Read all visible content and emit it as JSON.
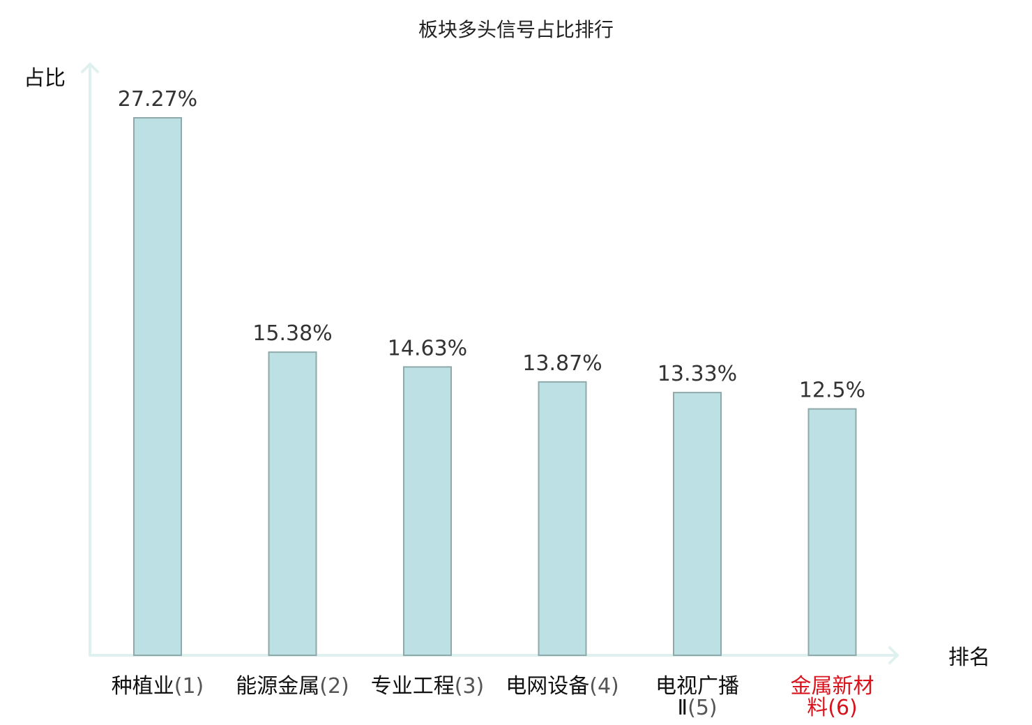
{
  "chart_data": {
    "type": "bar",
    "title": "板块多头信号占比排行",
    "ylabel": "占比",
    "xlabel": "排名",
    "ylim": [
      0,
      30
    ],
    "grid": false,
    "categories": [
      {
        "name": "种植业",
        "rank": "(1)",
        "lines": [
          "种植业(1)"
        ],
        "highlight": false
      },
      {
        "name": "能源金属",
        "rank": "(2)",
        "lines": [
          "能源金属(2)"
        ],
        "highlight": false
      },
      {
        "name": "专业工程",
        "rank": "(3)",
        "lines": [
          "专业工程(3)"
        ],
        "highlight": false
      },
      {
        "name": "电网设备",
        "rank": "(4)",
        "lines": [
          "电网设备(4)"
        ],
        "highlight": false
      },
      {
        "name": "电视广播Ⅱ",
        "rank": "(5)",
        "lines": [
          "电视广播",
          "Ⅱ(5)"
        ],
        "highlight": false
      },
      {
        "name": "金属新材料",
        "rank": "(6)",
        "lines": [
          "金属新材",
          "料(6)"
        ],
        "highlight": true
      }
    ],
    "values": [
      27.27,
      15.38,
      14.63,
      13.87,
      13.33,
      12.5
    ],
    "value_labels": [
      "27.27%",
      "15.38%",
      "14.63%",
      "13.87%",
      "13.33%",
      "12.5%"
    ],
    "colors": {
      "bar_fill": "#bce0e3",
      "bar_stroke": "#8fa9aa",
      "axis": "#dff1ef",
      "highlight": "#d9121b"
    }
  }
}
